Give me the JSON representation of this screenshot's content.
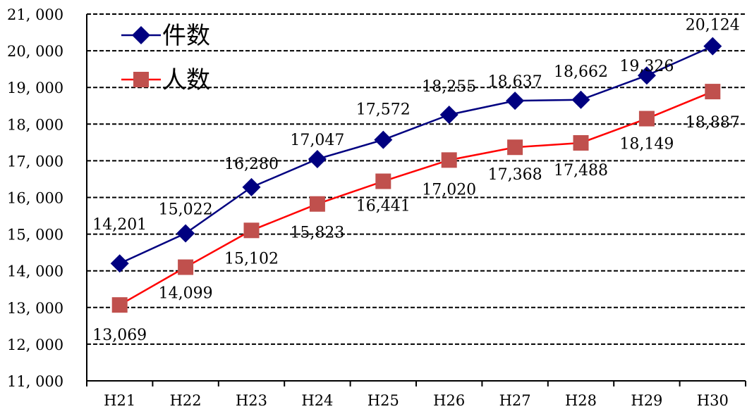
{
  "chart_data": {
    "type": "line",
    "categories": [
      "H21",
      "H22",
      "H23",
      "H24",
      "H25",
      "H26",
      "H27",
      "H28",
      "H29",
      "H30"
    ],
    "series": [
      {
        "name": "件数",
        "color": "#000080",
        "marker": "diamond",
        "values": [
          14201,
          15022,
          16280,
          17047,
          17572,
          18255,
          18637,
          18662,
          19326,
          20124
        ],
        "labels": [
          "14,201",
          "15,022",
          "16,280",
          "17,047",
          "17,572",
          "18,255",
          "18,637",
          "18,662",
          "19,326",
          "20,124"
        ]
      },
      {
        "name": "人数",
        "color": "#FF0000",
        "marker_color": "#C0504D",
        "marker": "square",
        "values": [
          13069,
          14099,
          15102,
          15823,
          16441,
          17020,
          17368,
          17488,
          18149,
          18887
        ],
        "labels": [
          "13,069",
          "14,099",
          "15,102",
          "15,823",
          "16,441",
          "17,020",
          "17,368",
          "17,488",
          "18,149",
          "18,887"
        ]
      }
    ],
    "yticks": [
      "11, 000",
      "12, 000",
      "13, 000",
      "14, 000",
      "15, 000",
      "16, 000",
      "17, 000",
      "18, 000",
      "19, 000",
      "20, 000",
      "21, 000"
    ],
    "ylim": [
      11000,
      21000
    ],
    "grid": "dashed horizontal",
    "legend": "top-left",
    "title": "",
    "xlabel": "",
    "ylabel": ""
  }
}
